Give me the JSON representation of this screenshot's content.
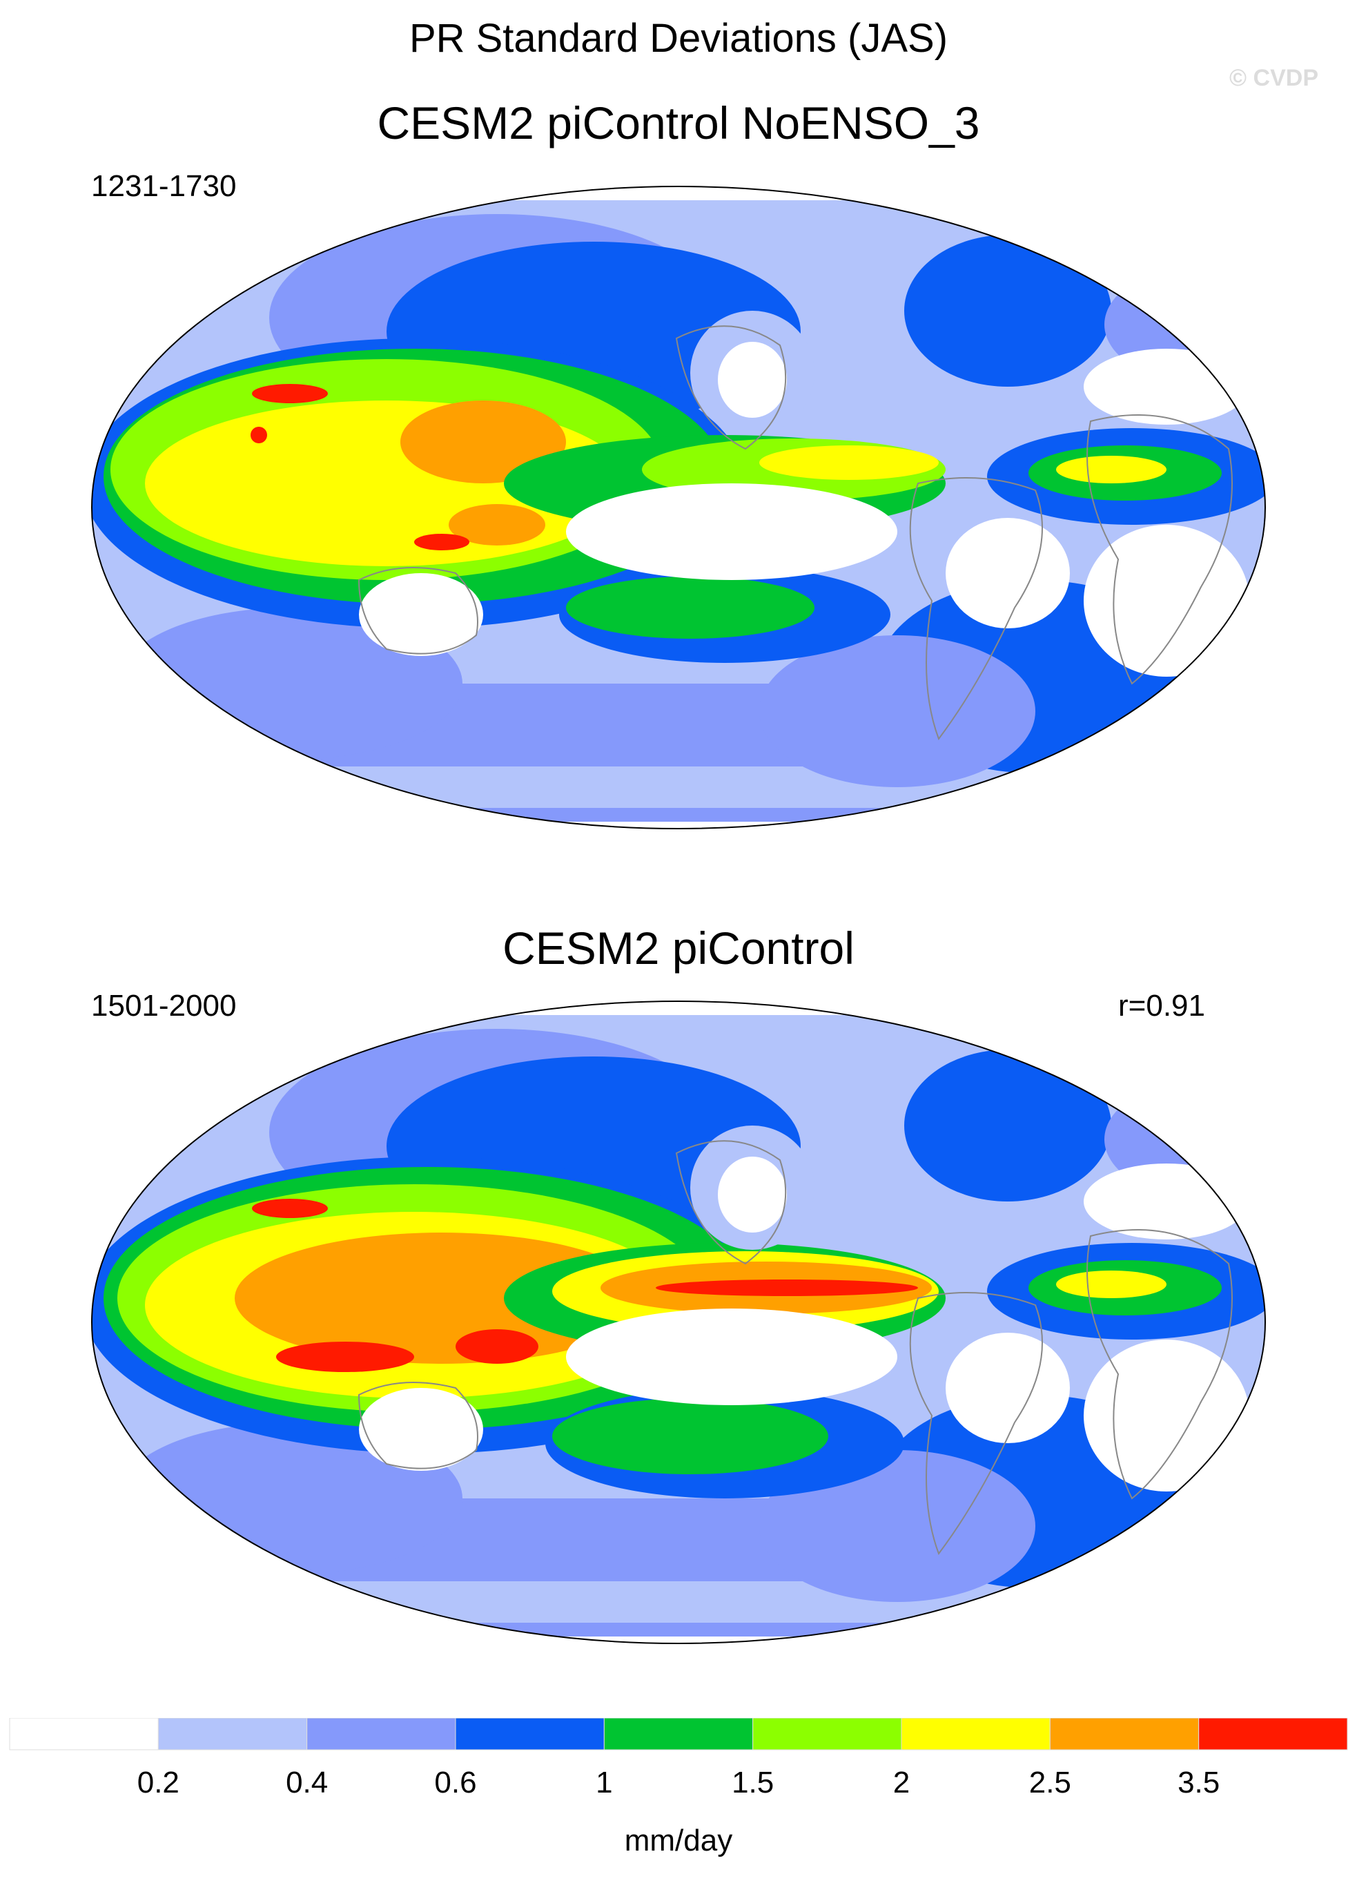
{
  "figure": {
    "title": "PR Standard Deviations (JAS)",
    "copyright": "© CVDP"
  },
  "panels": [
    {
      "title": "CESM2 piControl NoENSO_3",
      "period": "1231-1730",
      "correlation": ""
    },
    {
      "title": "CESM2 piControl",
      "period": "1501-2000",
      "correlation": "r=0.91"
    }
  ],
  "colorbar": {
    "unit": "mm/day",
    "levels": [
      "0.2",
      "0.4",
      "0.6",
      "1",
      "1.5",
      "2",
      "2.5",
      "3.5"
    ],
    "colors": [
      "#ffffff",
      "#b3c4fb",
      "#8599fb",
      "#0a5cf4",
      "#00c431",
      "#8cff00",
      "#ffff00",
      "#ffa000",
      "#ff1a00"
    ]
  },
  "colors": {
    "land_outline": "#888888",
    "map_border": "#000000"
  }
}
